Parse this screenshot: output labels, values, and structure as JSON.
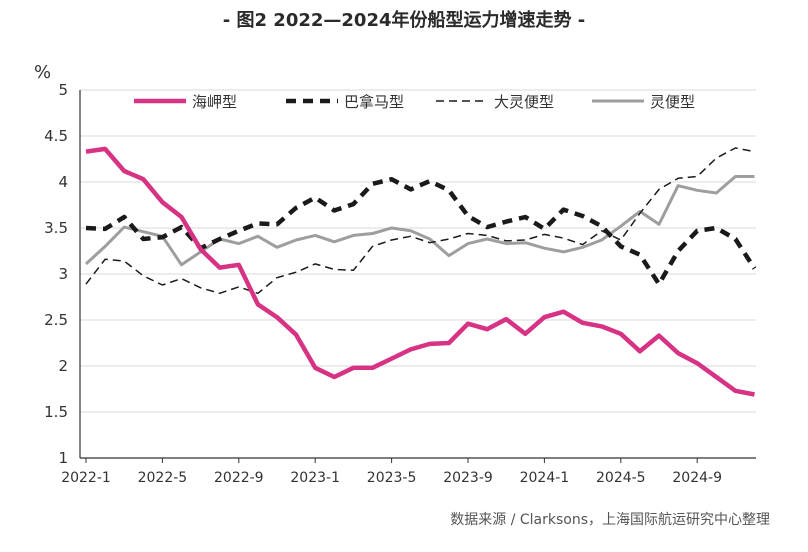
{
  "title": "- 图2 2022—2024年份船型运力增速走势 -",
  "source": "数据来源 / Clarksons，上海国际航运研究中心整理",
  "chart_data": {
    "type": "line",
    "unit": "%",
    "ylim": [
      1,
      5
    ],
    "yticks": [
      "1",
      "1.5",
      "2",
      "2.5",
      "3",
      "3.5",
      "4",
      "4.5",
      "5"
    ],
    "xticks": [
      {
        "label": "2022-1",
        "index": 0
      },
      {
        "label": "2022-5",
        "index": 4
      },
      {
        "label": "2022-9",
        "index": 8
      },
      {
        "label": "2023-1",
        "index": 12
      },
      {
        "label": "2023-5",
        "index": 16
      },
      {
        "label": "2023-9",
        "index": 20
      },
      {
        "label": "2024-1",
        "index": 24
      },
      {
        "label": "2024-5",
        "index": 28
      },
      {
        "label": "2024-9",
        "index": 32
      }
    ],
    "x_count": 36,
    "grid": "horizontal",
    "legend_position": "top",
    "series": [
      {
        "name": "海岬型",
        "color": "#d63384",
        "style": "solid-thick",
        "values": [
          4.33,
          4.36,
          4.12,
          4.03,
          3.78,
          3.62,
          3.27,
          3.07,
          3.1,
          2.67,
          2.53,
          2.34,
          1.98,
          1.88,
          1.98,
          1.98,
          2.08,
          2.18,
          2.24,
          2.25,
          2.46,
          2.4,
          2.51,
          2.35,
          2.53,
          2.59,
          2.47,
          2.43,
          2.35,
          2.16,
          2.33,
          2.14,
          2.03,
          1.88,
          1.73,
          1.69
        ]
      },
      {
        "name": "巴拿马型",
        "color": "#1a1a1a",
        "style": "dash-thick",
        "values": [
          3.5,
          3.49,
          3.62,
          3.38,
          3.4,
          3.51,
          3.28,
          3.38,
          3.47,
          3.55,
          3.54,
          3.72,
          3.83,
          3.69,
          3.76,
          3.98,
          4.03,
          3.92,
          4.01,
          3.91,
          3.63,
          3.51,
          3.57,
          3.62,
          3.49,
          3.7,
          3.63,
          3.52,
          3.3,
          3.21,
          2.89,
          3.25,
          3.47,
          3.5,
          3.38,
          3.06
        ]
      },
      {
        "name": "大灵便型",
        "color": "#1a1a1a",
        "style": "dash-thin",
        "values": [
          2.89,
          3.16,
          3.14,
          2.98,
          2.88,
          2.95,
          2.85,
          2.79,
          2.86,
          2.79,
          2.96,
          3.02,
          3.11,
          3.05,
          3.04,
          3.3,
          3.37,
          3.41,
          3.34,
          3.38,
          3.44,
          3.42,
          3.36,
          3.37,
          3.43,
          3.39,
          3.32,
          3.47,
          3.37,
          3.66,
          3.92,
          4.04,
          4.06,
          4.26,
          4.37,
          4.33
        ]
      },
      {
        "name": "灵便型",
        "color": "#9e9e9e",
        "style": "solid",
        "values": [
          3.11,
          3.3,
          3.51,
          3.46,
          3.41,
          3.1,
          3.24,
          3.38,
          3.33,
          3.41,
          3.29,
          3.37,
          3.42,
          3.35,
          3.42,
          3.44,
          3.5,
          3.47,
          3.38,
          3.2,
          3.33,
          3.38,
          3.33,
          3.34,
          3.28,
          3.24,
          3.29,
          3.37,
          3.52,
          3.68,
          3.54,
          3.96,
          3.91,
          3.88,
          4.06,
          4.06
        ]
      }
    ]
  }
}
